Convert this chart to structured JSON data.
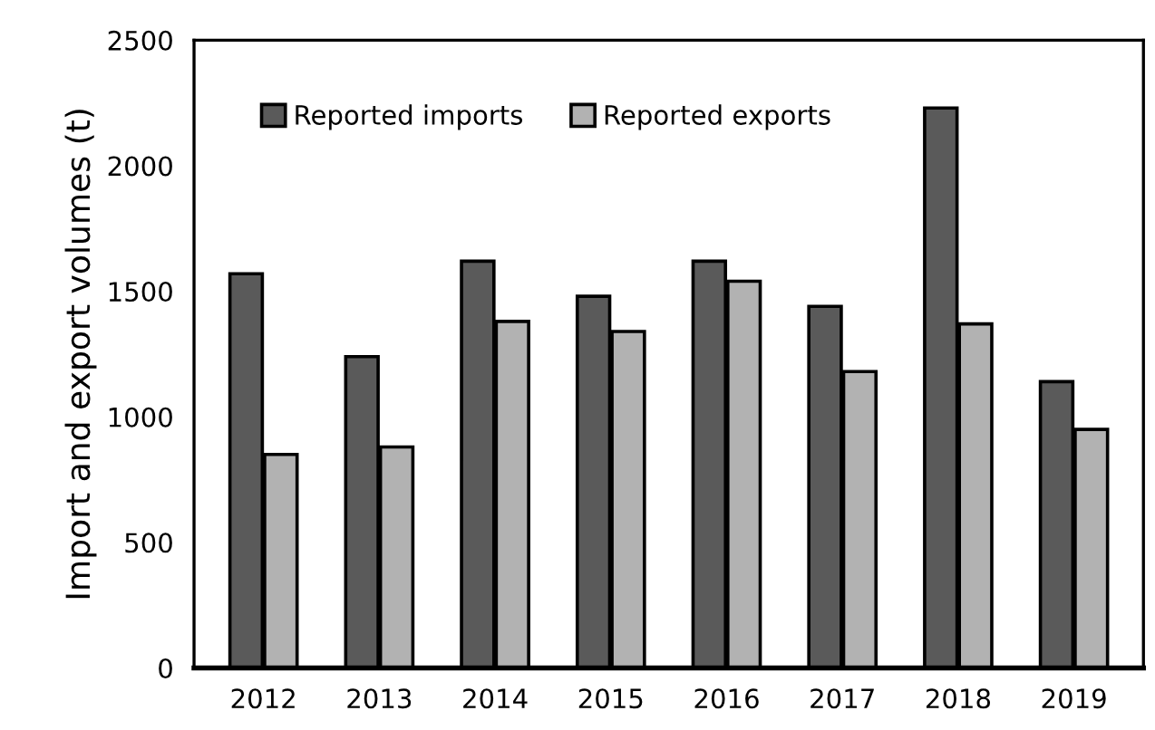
{
  "chart_data": {
    "type": "bar",
    "ylabel": "Import and export volumes (t)",
    "categories": [
      "2012",
      "2013",
      "2014",
      "2015",
      "2016",
      "2017",
      "2018",
      "2019"
    ],
    "series": [
      {
        "name": "Reported imports",
        "color": "#5a5a5a",
        "values": [
          1570,
          1240,
          1620,
          1480,
          1620,
          1440,
          2230,
          1140
        ]
      },
      {
        "name": "Reported exports",
        "color": "#b2b2b2",
        "values": [
          850,
          880,
          1380,
          1340,
          1540,
          1180,
          1370,
          950
        ]
      }
    ],
    "ylim": [
      0,
      2500
    ],
    "yticks": [
      0,
      500,
      1000,
      1500,
      2000,
      2500
    ],
    "grid": false,
    "legend": "top left"
  }
}
